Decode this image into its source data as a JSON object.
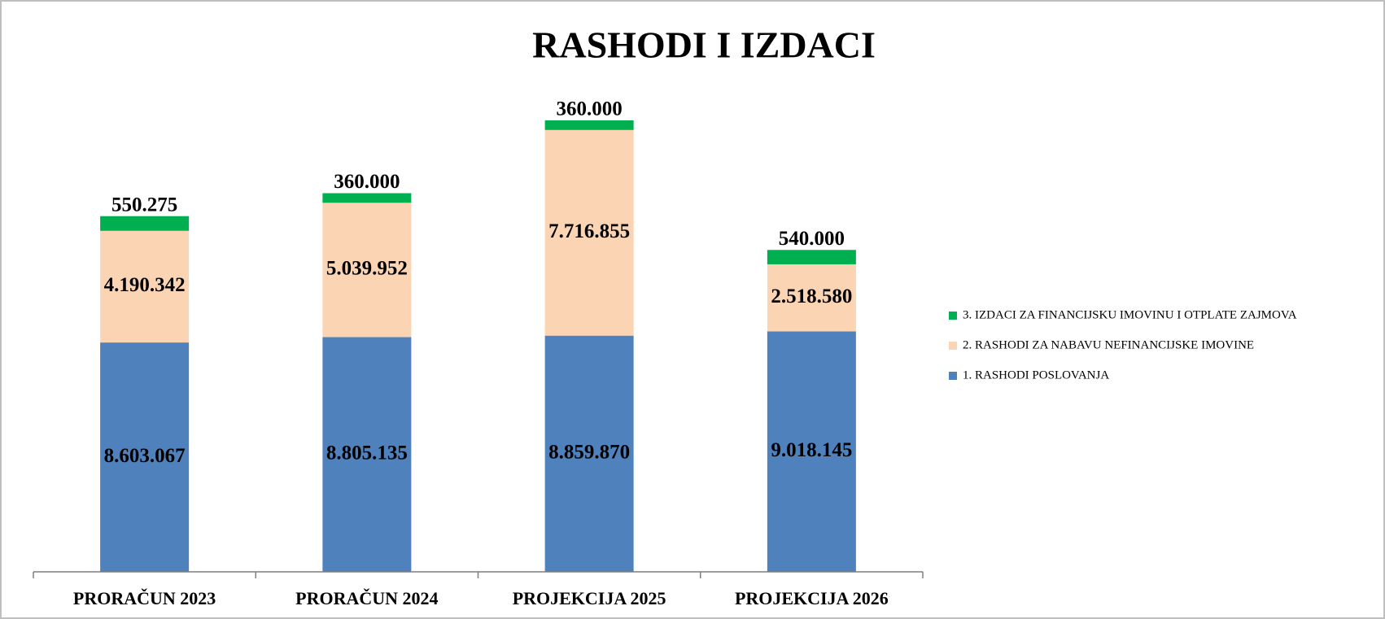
{
  "chart_data": {
    "type": "stacked_bar",
    "title": "RASHODI I IZDACI",
    "categories": [
      "PRORAČUN 2023",
      "PRORAČUN 2024",
      "PROJEKCIJA 2025",
      "PROJEKCIJA 2026"
    ],
    "series": [
      {
        "name": "1. RASHODI POSLOVANJA",
        "color": "#4f81bd",
        "values": [
          8603067,
          8805135,
          8859870,
          9018145
        ],
        "value_labels": [
          "8.603.067",
          "8.805.135",
          "8.859.870",
          "9.018.145"
        ]
      },
      {
        "name": "2. RASHODI ZA NABAVU NEFINANCIJSKE IMOVINE",
        "color": "#fbd4b4",
        "values": [
          4190342,
          5039952,
          7716855,
          2518580
        ],
        "value_labels": [
          "4.190.342",
          "5.039.952",
          "7.716.855",
          "2.518.580"
        ]
      },
      {
        "name": "3. IZDACI ZA FINANCIJSKU IMOVINU I OTPLATE ZAJMOVA",
        "color": "#00b050",
        "values": [
          550275,
          360000,
          360000,
          540000
        ],
        "value_labels": [
          "550.275",
          "360.000",
          "360.000",
          "540.000"
        ]
      }
    ],
    "legend": "right"
  }
}
